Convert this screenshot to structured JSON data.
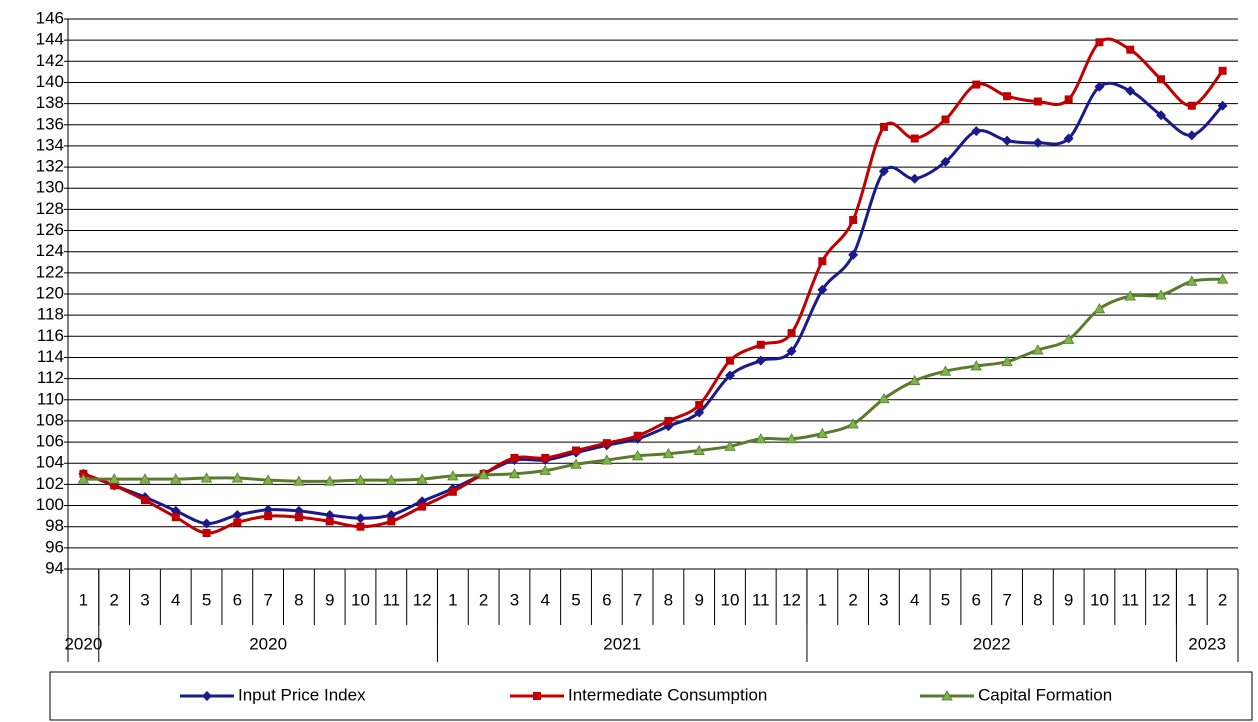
{
  "chart_data": {
    "type": "line",
    "categories": [
      "1",
      "2",
      "3",
      "4",
      "5",
      "6",
      "7",
      "8",
      "9",
      "10",
      "11",
      "12",
      "1",
      "2",
      "3",
      "4",
      "5",
      "6",
      "7",
      "8",
      "9",
      "10",
      "11",
      "12",
      "1",
      "2",
      "3",
      "4",
      "5",
      "6",
      "7",
      "8",
      "9",
      "10",
      "11",
      "12",
      "1",
      "2"
    ],
    "groups": [
      {
        "label": "2020",
        "span": 1
      },
      {
        "label": "2020",
        "span": 11
      },
      {
        "label": "2021",
        "span": 12
      },
      {
        "label": "2022",
        "span": 12
      },
      {
        "label": "2023",
        "span": 2
      }
    ],
    "series": [
      {
        "name": "Input Price Index",
        "color": "#1a1a8c",
        "marker": "diamond",
        "values": [
          103.0,
          101.9,
          100.8,
          99.5,
          98.3,
          99.1,
          99.6,
          99.5,
          99.1,
          98.8,
          99.1,
          100.4,
          101.6,
          103.0,
          104.3,
          104.3,
          105.0,
          105.7,
          106.3,
          107.5,
          108.8,
          112.3,
          113.7,
          114.6,
          120.4,
          123.7,
          131.6,
          130.9,
          132.5,
          135.4,
          134.5,
          134.3,
          134.7,
          139.6,
          139.2,
          136.9,
          135.0,
          137.8
        ]
      },
      {
        "name": "Intermediate Consumption",
        "color": "#c00000",
        "marker": "square",
        "values": [
          103.0,
          101.9,
          100.5,
          98.9,
          97.4,
          98.4,
          99.0,
          98.9,
          98.5,
          98.0,
          98.5,
          99.9,
          101.3,
          103.0,
          104.5,
          104.5,
          105.2,
          105.9,
          106.6,
          108.0,
          109.5,
          113.7,
          115.2,
          116.3,
          123.1,
          127.0,
          135.8,
          134.7,
          136.5,
          139.8,
          138.7,
          138.2,
          138.4,
          143.8,
          143.1,
          140.3,
          137.8,
          141.1
        ]
      },
      {
        "name": "Capital Formation",
        "color": "#5a7a2e",
        "marker": "triangle",
        "values": [
          102.5,
          102.5,
          102.5,
          102.5,
          102.6,
          102.6,
          102.4,
          102.3,
          102.3,
          102.4,
          102.4,
          102.5,
          102.8,
          102.9,
          103.0,
          103.3,
          103.9,
          104.3,
          104.7,
          104.9,
          105.2,
          105.6,
          106.3,
          106.3,
          106.8,
          107.7,
          110.1,
          111.8,
          112.7,
          113.2,
          113.6,
          114.7,
          115.7,
          118.6,
          119.8,
          119.9,
          121.2,
          121.4
        ]
      }
    ],
    "ylim": [
      94,
      146
    ],
    "yticks": [
      94,
      96,
      98,
      100,
      102,
      104,
      106,
      108,
      110,
      112,
      114,
      116,
      118,
      120,
      122,
      124,
      126,
      128,
      130,
      132,
      134,
      136,
      138,
      140,
      142,
      144,
      146
    ],
    "grid": true,
    "smooth": true,
    "legend": "bottom"
  }
}
